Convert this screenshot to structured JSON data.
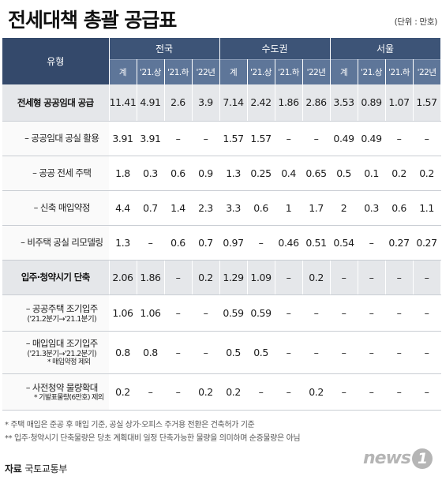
{
  "title": "전세대책 총괄 공급표",
  "unit": "(단위 : 만호)",
  "header": {
    "type_label": "유형",
    "groups": [
      "전국",
      "수도권",
      "서울"
    ],
    "subcols": [
      "계",
      "'21.상",
      "'21.하",
      "'22년"
    ]
  },
  "rows": [
    {
      "label": "전세형 공공임대 공급",
      "style": "bold",
      "values": [
        "11.41",
        "4.91",
        "2.6",
        "3.9",
        "7.14",
        "2.42",
        "1.86",
        "2.86",
        "3.53",
        "0.89",
        "1.07",
        "1.57"
      ]
    },
    {
      "label": "– 공공임대 공실 활용",
      "values": [
        "3.91",
        "3.91",
        "–",
        "–",
        "1.57",
        "1.57",
        "–",
        "–",
        "0.49",
        "0.49",
        "–",
        "–"
      ]
    },
    {
      "label": "– 공공 전세 주택",
      "values": [
        "1.8",
        "0.3",
        "0.6",
        "0.9",
        "1.3",
        "0.25",
        "0.4",
        "0.65",
        "0.5",
        "0.1",
        "0.2",
        "0.2"
      ]
    },
    {
      "label": "– 신축 매입약정",
      "values": [
        "4.4",
        "0.7",
        "1.4",
        "2.3",
        "3.3",
        "0.6",
        "1",
        "1.7",
        "2",
        "0.3",
        "0.6",
        "1.1"
      ]
    },
    {
      "label": "– 비주택 공실 리모델링",
      "values": [
        "1.3",
        "–",
        "0.6",
        "0.7",
        "0.97",
        "–",
        "0.46",
        "0.51",
        "0.54",
        "–",
        "0.27",
        "0.27"
      ]
    },
    {
      "label": "입주·청약시기 단축",
      "style": "bold",
      "values": [
        "2.06",
        "1.86",
        "–",
        "0.2",
        "1.29",
        "1.09",
        "–",
        "0.2",
        "–",
        "–",
        "–",
        "–"
      ]
    },
    {
      "label": "– 공공주택 조기입주",
      "note": "('21.2분기→'21.1분기)",
      "values": [
        "1.06",
        "1.06",
        "–",
        "–",
        "0.59",
        "0.59",
        "–",
        "–",
        "–",
        "–",
        "–",
        "–"
      ]
    },
    {
      "label": "– 매입임대 조기입주",
      "note": "('21.3분기→'21.2분기)",
      "note2": "* 매입약정 제외",
      "values": [
        "0.8",
        "0.8",
        "–",
        "–",
        "0.5",
        "0.5",
        "–",
        "–",
        "–",
        "–",
        "–",
        "–"
      ]
    },
    {
      "label": "– 사전청약 물량확대",
      "note2": "* 기발표물량(6만호) 제외",
      "values": [
        "0.2",
        "–",
        "–",
        "0.2",
        "0.2",
        "–",
        "–",
        "0.2",
        "–",
        "–",
        "–",
        "–"
      ]
    }
  ],
  "notes": [
    "* 주택 매입은 준공 후 매입 기준, 공실 상가·오피스 주거용 전환은 건축허가 기준",
    "** 입주·청약시기 단축물량은 당초 계획대비 일정 단축가능한 물량을 의미하며 순증물량은 아님"
  ],
  "source": {
    "label": "자료",
    "value": "국토교통부"
  },
  "logo": {
    "text": "news",
    "mark": "1"
  }
}
